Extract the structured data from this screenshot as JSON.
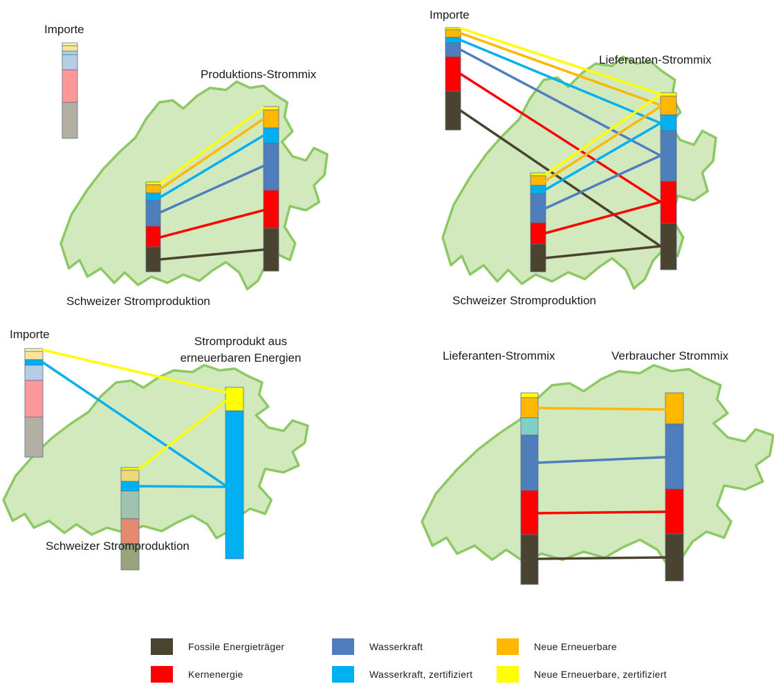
{
  "colors": {
    "fossil": "#4a4330",
    "nuclear": "#ff0000",
    "hydro": "#4f7ebd",
    "hydro_cert": "#00b0f0",
    "new_ren": "#ffb800",
    "new_ren_cert": "#ffff00",
    "imp_fossil": "#b3b0a3",
    "imp_nuclear": "#ff9999",
    "imp_hydro": "#b7cde6",
    "imp_hydro_cert": "#9fd8f3",
    "imp_new_ren": "#ffe399",
    "imp_new_ren_cert": "#ffff99",
    "faded_fossil": "#9aa37c",
    "faded_nuclear": "#e58a6c",
    "faded_hydro": "#9fc3ae",
    "faded_new_ren": "#ecd97a",
    "teal": "#80d0c8",
    "map_fill": "#d1e9bd",
    "map_stroke": "#8cc964"
  },
  "panels": {
    "top_left": {
      "import_label": "Importe",
      "mix_label": "Produktions-Strommix",
      "production_label": "Schweizer Stromproduktion"
    },
    "top_right": {
      "import_label": "Importe",
      "mix_label": "Lieferanten-Strommix",
      "production_label": "Schweizer Stromproduktion"
    },
    "bottom_left": {
      "import_label": "Importe",
      "product_label_line1": "Stromprodukt aus",
      "product_label_line2": "erneuerbaren Energien",
      "production_label": "Schweizer Stromproduktion"
    },
    "bottom_right": {
      "supplier_label": "Lieferanten-Strommix",
      "consumer_label": "Verbraucher Strommix"
    }
  },
  "legend": [
    {
      "label": "Fossile Energieträger",
      "color_key": "fossil"
    },
    {
      "label": "Wasserkraft",
      "color_key": "hydro"
    },
    {
      "label": "Neue Erneuerbare",
      "color_key": "new_ren"
    },
    {
      "label": "Kernenergie",
      "color_key": "nuclear"
    },
    {
      "label": "Wasserkraft, zertifiziert",
      "color_key": "hydro_cert"
    },
    {
      "label": "Neue Erneuerbare, zertifiziert",
      "color_key": "new_ren_cert"
    }
  ]
}
